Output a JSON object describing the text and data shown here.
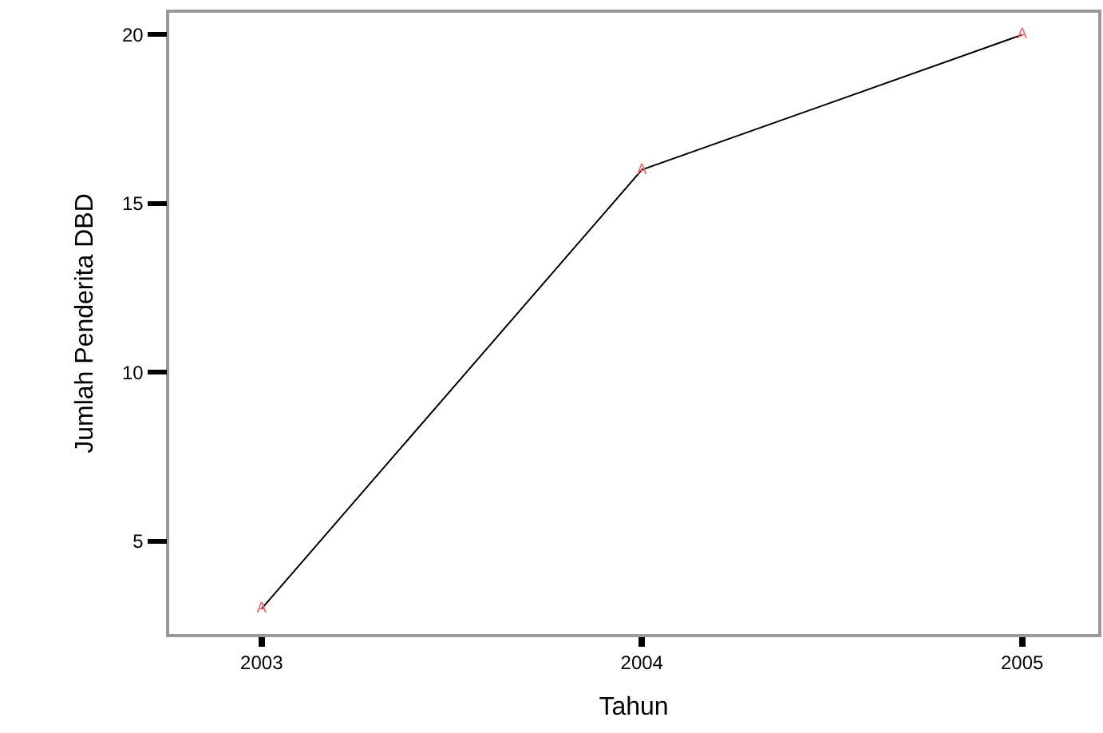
{
  "chart_data": {
    "type": "line",
    "xlabel": "Tahun",
    "ylabel": "Jumlah Penderita DBD",
    "categories": [
      "2003",
      "2004",
      "2005"
    ],
    "series": [
      {
        "color": "#000000",
        "values": [
          3,
          16,
          20
        ]
      }
    ],
    "annotations": [
      {
        "text": "A",
        "x": "2003",
        "y": 3
      },
      {
        "text": "A",
        "x": "2004",
        "y": 16
      },
      {
        "text": "A",
        "x": "2005",
        "y": 20
      }
    ],
    "ylim": [
      2.25,
      20.65
    ],
    "yticks": [
      5,
      10,
      15,
      20
    ],
    "marker": "none",
    "line_style": "solid"
  }
}
